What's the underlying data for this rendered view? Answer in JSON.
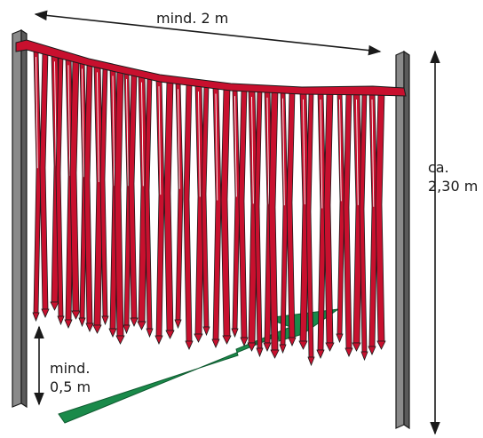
{
  "labels": {
    "width": "mind. 2 m",
    "height_line1": "ca.",
    "height_line2": "2,30 m",
    "clearance_line1": "mind.",
    "clearance_line2": "0,5 m"
  },
  "colors": {
    "strip_red": "#c8102e",
    "post_gray": "#6e6e6e",
    "arrow_green": "#1a8a4a",
    "outline": "#1a1a1a"
  },
  "icons": {
    "left_post": "vertical-post",
    "right_post": "vertical-post",
    "curtain": "hanging-strip-curtain",
    "direction": "green-arrow"
  }
}
